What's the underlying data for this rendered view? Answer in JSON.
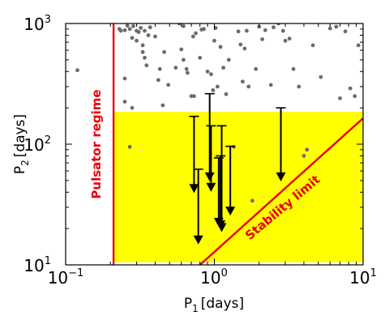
{
  "chart_data": {
    "type": "scatter",
    "x_scale": "log",
    "y_scale": "log",
    "xlim": [
      0.1,
      10
    ],
    "ylim": [
      10,
      1000
    ],
    "xlabel_main": "P",
    "xlabel_sub": "1",
    "xlabel_unit": "[days]",
    "ylabel_main": "P",
    "ylabel_sub": "2",
    "ylabel_unit": "[days]",
    "x_ticks": [
      {
        "value": 0.1,
        "base": "10",
        "exp": "−1"
      },
      {
        "value": 1,
        "base": "10",
        "exp": "0"
      },
      {
        "value": 10,
        "base": "10",
        "exp": "1"
      }
    ],
    "y_ticks": [
      {
        "value": 10,
        "base": "10",
        "exp": "1"
      },
      {
        "value": 100,
        "base": "10",
        "exp": "2"
      },
      {
        "value": 1000,
        "base": "10",
        "exp": "3"
      }
    ],
    "pulsator_limit_P1": 0.21,
    "stability_line": [
      [
        0.8,
        10
      ],
      [
        10,
        164
      ]
    ],
    "highlight_region": {
      "P1_min": 0.21,
      "P1_max": 10,
      "P2_min": 10.5,
      "P2_max": 185
    },
    "colors": {
      "points": "#6b6b6b",
      "limit_lines": "#e8000b",
      "highlight": "#ffff00",
      "arrows": "#000000"
    },
    "annotations": {
      "pulsator": "Pulsator regime",
      "stability": "Stability limit"
    },
    "scatter_points": [
      [
        0.12,
        410
      ],
      [
        0.25,
        350
      ],
      [
        0.25,
        225
      ],
      [
        0.27,
        95
      ],
      [
        0.28,
        200
      ],
      [
        0.23,
        900
      ],
      [
        0.235,
        870
      ],
      [
        0.25,
        880
      ],
      [
        0.26,
        960
      ],
      [
        0.27,
        900
      ],
      [
        0.285,
        950
      ],
      [
        0.3,
        870
      ],
      [
        0.31,
        850
      ],
      [
        0.32,
        920
      ],
      [
        0.34,
        870
      ],
      [
        0.37,
        930
      ],
      [
        0.28,
        760
      ],
      [
        0.3,
        720
      ],
      [
        0.33,
        660
      ],
      [
        0.33,
        580
      ],
      [
        0.34,
        520
      ],
      [
        0.35,
        450
      ],
      [
        0.36,
        800
      ],
      [
        0.4,
        780
      ],
      [
        0.42,
        340
      ],
      [
        0.43,
        420
      ],
      [
        0.45,
        210
      ],
      [
        0.46,
        580
      ],
      [
        0.49,
        310
      ],
      [
        0.55,
        430
      ],
      [
        0.58,
        1000
      ],
      [
        0.6,
        610
      ],
      [
        0.62,
        950
      ],
      [
        0.62,
        500
      ],
      [
        0.65,
        420
      ],
      [
        0.66,
        390
      ],
      [
        0.7,
        250
      ],
      [
        0.72,
        780
      ],
      [
        0.73,
        250
      ],
      [
        0.75,
        830
      ],
      [
        0.8,
        520
      ],
      [
        0.82,
        890
      ],
      [
        0.85,
        900
      ],
      [
        0.9,
        400
      ],
      [
        0.95,
        380
      ],
      [
        0.98,
        280
      ],
      [
        1.0,
        720
      ],
      [
        1.02,
        920
      ],
      [
        1.05,
        300
      ],
      [
        1.1,
        640
      ],
      [
        1.15,
        430
      ],
      [
        1.2,
        260
      ],
      [
        1.25,
        500
      ],
      [
        1.35,
        95
      ],
      [
        1.45,
        860
      ],
      [
        1.5,
        670
      ],
      [
        1.55,
        330
      ],
      [
        1.6,
        620
      ],
      [
        1.65,
        870
      ],
      [
        1.7,
        300
      ],
      [
        1.8,
        34
      ],
      [
        1.9,
        420
      ],
      [
        2.0,
        940
      ],
      [
        2.1,
        740
      ],
      [
        2.2,
        880
      ],
      [
        2.4,
        310
      ],
      [
        2.5,
        930
      ],
      [
        2.7,
        1000
      ],
      [
        2.9,
        870
      ],
      [
        3.0,
        720
      ],
      [
        3.2,
        750
      ],
      [
        3.4,
        420
      ],
      [
        3.7,
        300
      ],
      [
        4.0,
        80
      ],
      [
        4.2,
        90
      ],
      [
        4.6,
        660
      ],
      [
        5.2,
        360
      ],
      [
        6.0,
        910
      ],
      [
        6.6,
        940
      ],
      [
        7.0,
        240
      ],
      [
        7.6,
        860
      ],
      [
        8.2,
        290
      ],
      [
        8.8,
        250
      ],
      [
        9.3,
        660
      ]
    ],
    "upper_limits": [
      {
        "P1": 0.73,
        "P2_top": 170,
        "P2_bottom": 40
      },
      {
        "P1": 0.78,
        "P2_top": 62,
        "P2_bottom": 15
      },
      {
        "P1": 0.93,
        "P2_top": 262,
        "P2_bottom": 50
      },
      {
        "P1": 0.95,
        "P2_top": 142,
        "P2_bottom": 41
      },
      {
        "P1": 1.07,
        "P2_top": 77,
        "P2_bottom": 21
      },
      {
        "P1": 1.1,
        "P2_top": 80,
        "P2_bottom": 20
      },
      {
        "P1": 1.12,
        "P2_top": 142,
        "P2_bottom": 19
      },
      {
        "P1": 1.28,
        "P2_top": 96,
        "P2_bottom": 26
      },
      {
        "P1": 2.8,
        "P2_top": 200,
        "P2_bottom": 50
      }
    ]
  }
}
